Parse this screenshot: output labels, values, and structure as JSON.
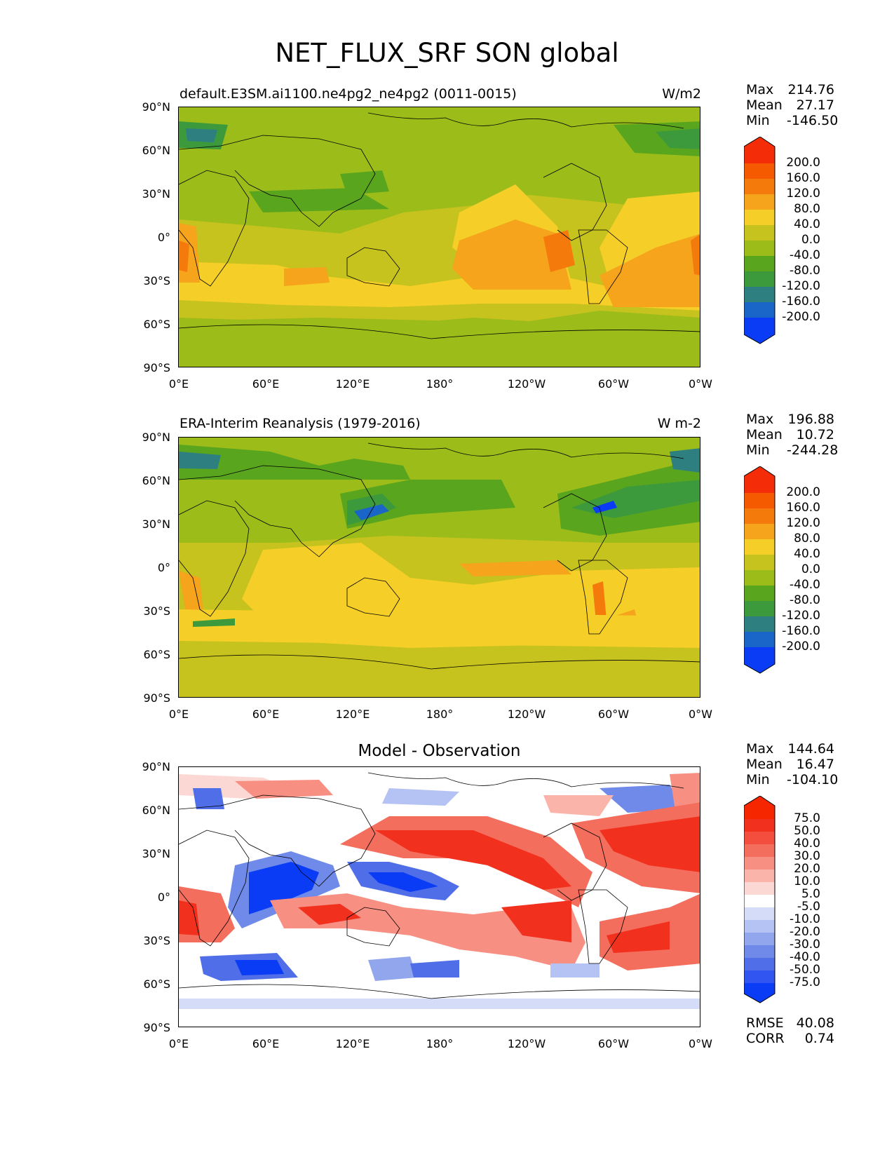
{
  "figure": {
    "title": "NET_FLUX_SRF SON global"
  },
  "axes": {
    "x_ticks": [
      "0°E",
      "60°E",
      "120°E",
      "180°",
      "120°W",
      "60°W",
      "0°W"
    ],
    "y_ticks": [
      "90°N",
      "60°N",
      "30°N",
      "0°",
      "30°S",
      "60°S",
      "90°S"
    ]
  },
  "panels": [
    {
      "left_title": "default.E3SM.ai1100.ne4pg2_ne4pg2 (0011-0015)",
      "units": "W/m2",
      "stats": {
        "max_label": "Max",
        "max": "214.76",
        "mean_label": "Mean",
        "mean": "27.17",
        "min_label": "Min",
        "min": "-146.50"
      },
      "colorbar_labels": [
        "200.0",
        "160.0",
        "120.0",
        "80.0",
        "40.0",
        "0.0",
        "-40.0",
        "-80.0",
        "-120.0",
        "-160.0",
        "-200.0"
      ]
    },
    {
      "left_title": "ERA-Interim Reanalysis (1979-2016)",
      "units": "W m-2",
      "stats": {
        "max_label": "Max",
        "max": "196.88",
        "mean_label": "Mean",
        "mean": "10.72",
        "min_label": "Min",
        "min": "-244.28"
      },
      "colorbar_labels": [
        "200.0",
        "160.0",
        "120.0",
        "80.0",
        "40.0",
        "0.0",
        "-40.0",
        "-80.0",
        "-120.0",
        "-160.0",
        "-200.0"
      ]
    },
    {
      "center_title": "Model - Observation",
      "stats": {
        "max_label": "Max",
        "max": "144.64",
        "mean_label": "Mean",
        "mean": "16.47",
        "min_label": "Min",
        "min": "-104.10"
      },
      "colorbar_labels": [
        "75.0",
        "50.0",
        "40.0",
        "30.0",
        "20.0",
        "10.0",
        "5.0",
        "-5.0",
        "-10.0",
        "-20.0",
        "-30.0",
        "-40.0",
        "-50.0",
        "-75.0"
      ],
      "rmse_label": "RMSE",
      "rmse": "40.08",
      "corr_label": "CORR",
      "corr": "0.74"
    }
  ],
  "colors": {
    "field_scale": [
      "#0a3cf5",
      "#1a66c8",
      "#2e8080",
      "#3d9a3c",
      "#5aa51e",
      "#9cbc1a",
      "#c6c21e",
      "#f5ce28",
      "#f5a41c",
      "#f57a0c",
      "#f55a00",
      "#f52c08"
    ],
    "diff_scale": [
      "#0a3cf5",
      "#3055f0",
      "#4f6ee8",
      "#6f8ae8",
      "#92a6ee",
      "#b4c2f4",
      "#d4dcf8",
      "#ffffff",
      "#fcd8d4",
      "#fab4aa",
      "#f78f82",
      "#f46e5e",
      "#f34e3e",
      "#f2301e",
      "#f52600"
    ]
  }
}
